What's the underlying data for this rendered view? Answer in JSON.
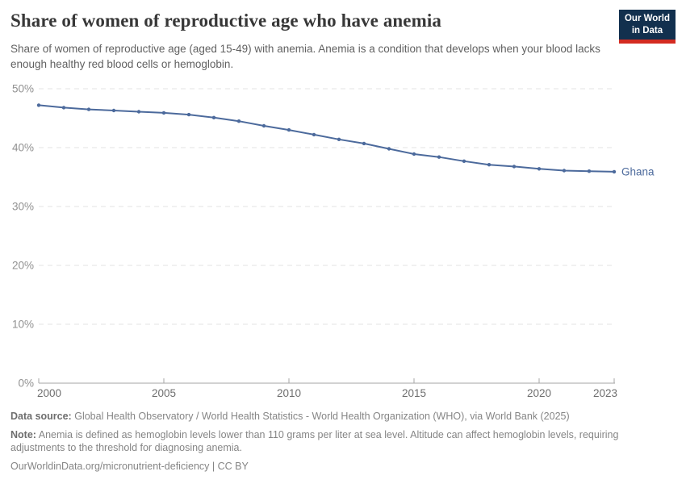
{
  "header": {
    "title": "Share of women of reproductive age who have anemia",
    "subtitle": "Share of women of reproductive age (aged 15-49) with anemia. Anemia is a condition that develops when your blood lacks enough healthy red blood cells or hemoglobin.",
    "logo": {
      "line1": "Our World",
      "line2": "in Data"
    }
  },
  "chart_data": {
    "type": "line",
    "title": "Share of women of reproductive age who have anemia",
    "xlabel": "",
    "ylabel": "",
    "x": [
      2000,
      2001,
      2002,
      2003,
      2004,
      2005,
      2006,
      2007,
      2008,
      2009,
      2010,
      2011,
      2012,
      2013,
      2014,
      2015,
      2016,
      2017,
      2018,
      2019,
      2020,
      2021,
      2022,
      2023
    ],
    "series": [
      {
        "name": "Ghana",
        "color": "#4C6A9C",
        "values": [
          47.2,
          46.8,
          46.5,
          46.3,
          46.1,
          45.9,
          45.6,
          45.1,
          44.5,
          43.7,
          43.0,
          42.2,
          41.4,
          40.7,
          39.8,
          38.9,
          38.4,
          37.7,
          37.1,
          36.8,
          36.4,
          36.1,
          36.0,
          35.9
        ]
      }
    ],
    "ylim": [
      0,
      50
    ],
    "yticks": [
      {
        "value": 0,
        "label": "0%"
      },
      {
        "value": 10,
        "label": "10%"
      },
      {
        "value": 20,
        "label": "20%"
      },
      {
        "value": 30,
        "label": "30%"
      },
      {
        "value": 40,
        "label": "40%"
      },
      {
        "value": 50,
        "label": "50%"
      }
    ],
    "xticks": [
      2000,
      2005,
      2010,
      2015,
      2020,
      2023
    ],
    "grid": "horizontal-dashed",
    "legend": "end-of-line-label",
    "colors": {
      "grid": "#e3e3e3",
      "axis": "#a5a5a5",
      "y_label": "#919191",
      "x_label": "#6f6f6f"
    }
  },
  "footer": {
    "source_label": "Data source:",
    "source_text": "Global Health Observatory / World Health Statistics - World Health Organization (WHO), via World Bank (2025)",
    "note_label": "Note:",
    "note_text": "Anemia is defined as hemoglobin levels lower than 110 grams per liter at sea level. Altitude can affect hemoglobin levels, requiring adjustments to the threshold for diagnosing anemia.",
    "citation": "OurWorldinData.org/micronutrient-deficiency | CC BY"
  }
}
